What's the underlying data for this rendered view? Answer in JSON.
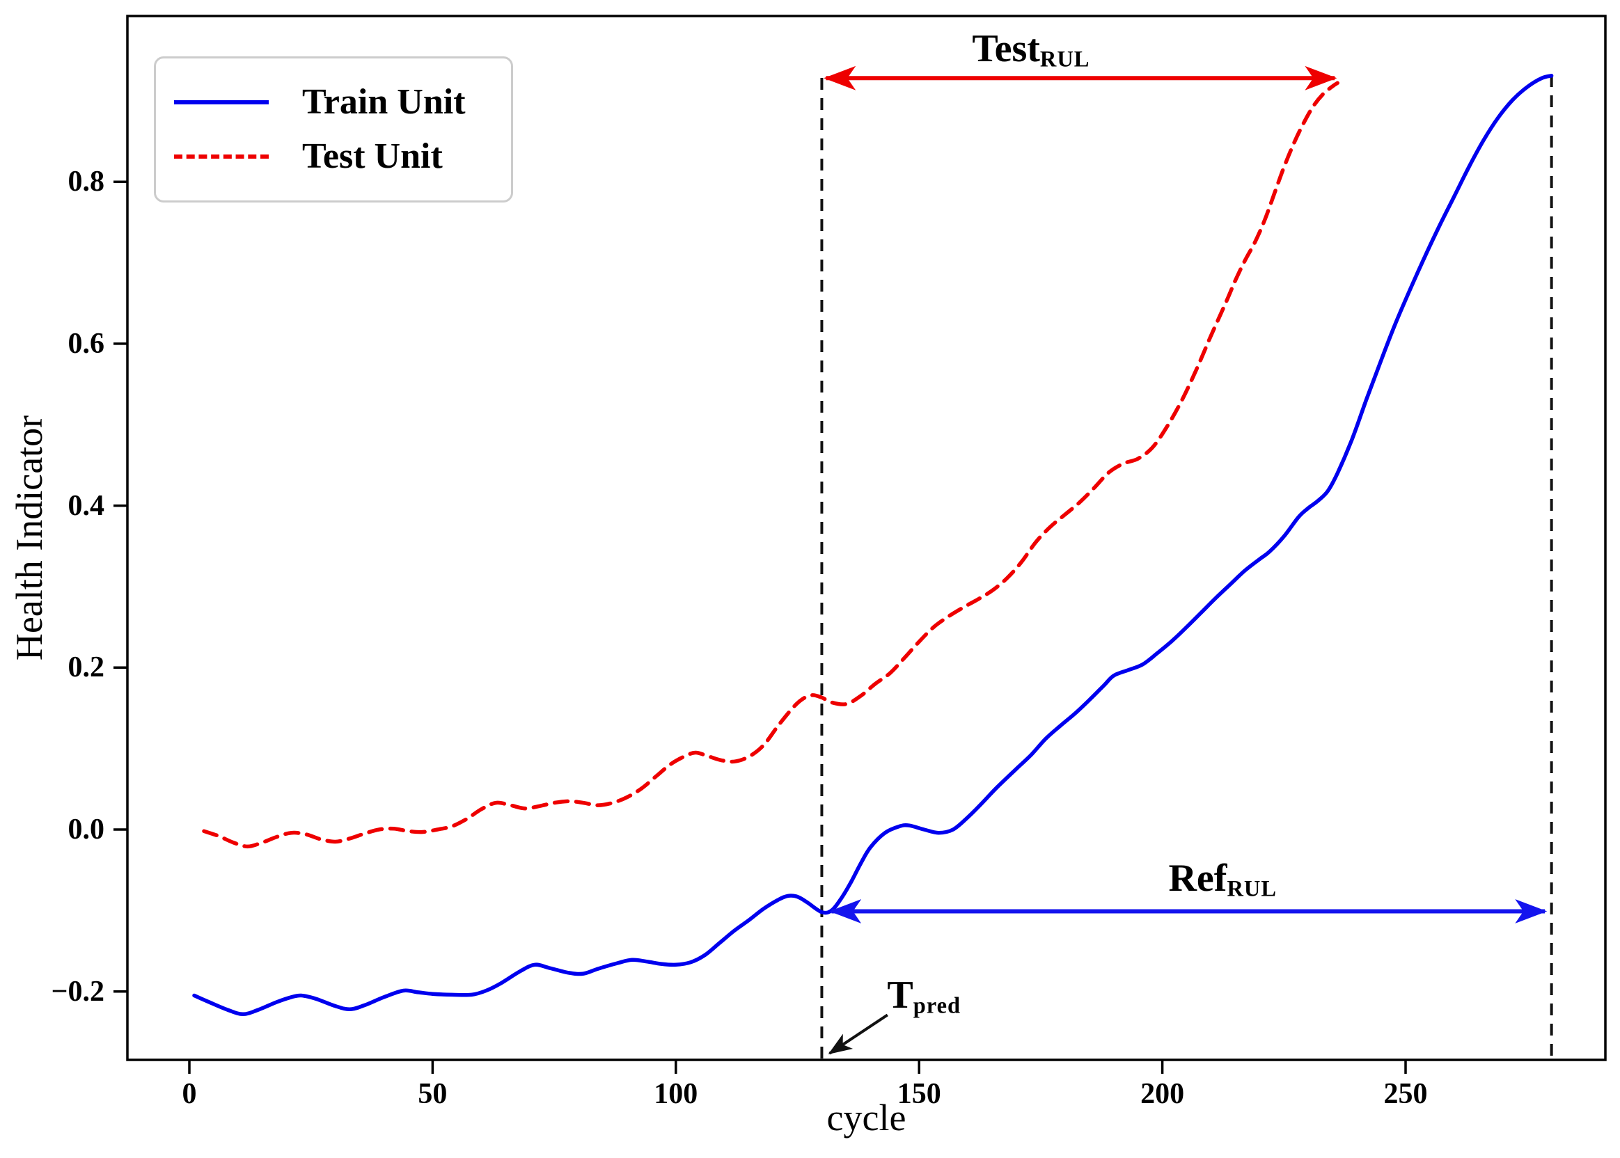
{
  "figure": {
    "background": "#ffffff",
    "axis_color": "#000000",
    "train_color": "#0000ee",
    "test_color": "#ee0000",
    "dashed_guide_color": "#111111"
  },
  "legend": {
    "items": [
      {
        "label": "Train Unit",
        "color": "#0000ee",
        "style": "solid"
      },
      {
        "label": "Test Unit",
        "color": "#ee0000",
        "style": "dashed"
      }
    ]
  },
  "annotations": {
    "test_rul": {
      "text": "Test",
      "sub": "RUL",
      "label_cycle": 173,
      "label_value": 0.963,
      "arrow_from_cycle": 130,
      "arrow_to_cycle": 236,
      "arrow_value": 0.928,
      "arrow_color": "#ee0000"
    },
    "ref_rul": {
      "text": "Ref",
      "sub": "RUL",
      "label_cycle": 212.4,
      "label_value": -0.062,
      "arrow_from_cycle": 132,
      "arrow_to_cycle": 279.2,
      "arrow_value": -0.101,
      "arrow_color": "#1414ee"
    },
    "t_pred": {
      "text": "T",
      "sub": "pred",
      "label_cycle": 151,
      "label_value": -0.206,
      "arrow_tail": [
        143.5,
        -0.229
      ],
      "arrow_tip": [
        131.6,
        -0.2765
      ],
      "arrow_color": "#111111"
    }
  },
  "guides": {
    "t_pred_cycle": 130,
    "ref_end_cycle": 280
  },
  "chart_data": {
    "type": "line",
    "title": "",
    "xlabel": "cycle",
    "ylabel": "Health Indicator",
    "xlim": [
      -12.5,
      291
    ],
    "ylim": [
      -0.285,
      1.005
    ],
    "x_ticks": [
      0,
      50,
      100,
      150,
      200,
      250
    ],
    "x_tick_labels": [
      "0",
      "50",
      "100",
      "150",
      "200",
      "250"
    ],
    "y_ticks": [
      0.8,
      0.6,
      0.4,
      0.2,
      0.0,
      -0.2
    ],
    "y_tick_labels": [
      "0.8",
      "0.6",
      "0.4",
      "0.2",
      "0.0",
      "−0.2"
    ],
    "grid": false,
    "legend_position": "upper left",
    "series": [
      {
        "name": "Train Unit",
        "color": "#0000ee",
        "line_style": "solid",
        "points": [
          [
            1,
            -0.205
          ],
          [
            4,
            -0.213
          ],
          [
            8,
            -0.223
          ],
          [
            11,
            -0.228
          ],
          [
            14,
            -0.223
          ],
          [
            18,
            -0.213
          ],
          [
            21,
            -0.207
          ],
          [
            23,
            -0.205
          ],
          [
            26,
            -0.209
          ],
          [
            30,
            -0.218
          ],
          [
            33,
            -0.222
          ],
          [
            36,
            -0.217
          ],
          [
            40,
            -0.207
          ],
          [
            44,
            -0.199
          ],
          [
            47,
            -0.201
          ],
          [
            50,
            -0.203
          ],
          [
            54,
            -0.204
          ],
          [
            58,
            -0.204
          ],
          [
            61,
            -0.199
          ],
          [
            64,
            -0.19
          ],
          [
            68,
            -0.175
          ],
          [
            71,
            -0.167
          ],
          [
            74,
            -0.171
          ],
          [
            78,
            -0.177
          ],
          [
            81,
            -0.178
          ],
          [
            84,
            -0.172
          ],
          [
            88,
            -0.165
          ],
          [
            91,
            -0.161
          ],
          [
            94,
            -0.163
          ],
          [
            97,
            -0.166
          ],
          [
            100,
            -0.167
          ],
          [
            103,
            -0.164
          ],
          [
            106,
            -0.155
          ],
          [
            109,
            -0.14
          ],
          [
            112,
            -0.125
          ],
          [
            115,
            -0.112
          ],
          [
            118,
            -0.098
          ],
          [
            121,
            -0.087
          ],
          [
            123,
            -0.082
          ],
          [
            125,
            -0.083
          ],
          [
            127,
            -0.09
          ],
          [
            130,
            -0.102
          ],
          [
            132,
            -0.1
          ],
          [
            134,
            -0.085
          ],
          [
            136,
            -0.065
          ],
          [
            138,
            -0.042
          ],
          [
            140,
            -0.022
          ],
          [
            143,
            -0.004
          ],
          [
            146,
            0.004
          ],
          [
            148,
            0.005
          ],
          [
            151,
            0.0
          ],
          [
            154,
            -0.004
          ],
          [
            157,
            0.0
          ],
          [
            160,
            0.015
          ],
          [
            163,
            0.033
          ],
          [
            166,
            0.052
          ],
          [
            170,
            0.075
          ],
          [
            173,
            0.092
          ],
          [
            176,
            0.112
          ],
          [
            179,
            0.128
          ],
          [
            182,
            0.143
          ],
          [
            185,
            0.16
          ],
          [
            188,
            0.178
          ],
          [
            190,
            0.19
          ],
          [
            193,
            0.197
          ],
          [
            196,
            0.204
          ],
          [
            199,
            0.218
          ],
          [
            202,
            0.233
          ],
          [
            205,
            0.25
          ],
          [
            208,
            0.268
          ],
          [
            211,
            0.286
          ],
          [
            214,
            0.303
          ],
          [
            217,
            0.32
          ],
          [
            220,
            0.334
          ],
          [
            222,
            0.343
          ],
          [
            225,
            0.362
          ],
          [
            228,
            0.386
          ],
          [
            230,
            0.397
          ],
          [
            232,
            0.406
          ],
          [
            234,
            0.418
          ],
          [
            236,
            0.44
          ],
          [
            239,
            0.482
          ],
          [
            242,
            0.532
          ],
          [
            245,
            0.58
          ],
          [
            248,
            0.626
          ],
          [
            251,
            0.668
          ],
          [
            254,
            0.708
          ],
          [
            257,
            0.746
          ],
          [
            260,
            0.782
          ],
          [
            263,
            0.818
          ],
          [
            266,
            0.851
          ],
          [
            269,
            0.879
          ],
          [
            272,
            0.901
          ],
          [
            275,
            0.917
          ],
          [
            278,
            0.928
          ],
          [
            280,
            0.931
          ]
        ]
      },
      {
        "name": "Test Unit",
        "color": "#ee0000",
        "line_style": "dashed",
        "points": [
          [
            3,
            -0.002
          ],
          [
            6,
            -0.008
          ],
          [
            9,
            -0.016
          ],
          [
            12,
            -0.021
          ],
          [
            15,
            -0.016
          ],
          [
            18,
            -0.009
          ],
          [
            21,
            -0.004
          ],
          [
            24,
            -0.006
          ],
          [
            27,
            -0.012
          ],
          [
            30,
            -0.015
          ],
          [
            33,
            -0.011
          ],
          [
            36,
            -0.005
          ],
          [
            39,
            0.0
          ],
          [
            42,
            0.001
          ],
          [
            45,
            -0.002
          ],
          [
            48,
            -0.003
          ],
          [
            51,
            0.0
          ],
          [
            54,
            0.004
          ],
          [
            57,
            0.013
          ],
          [
            60,
            0.025
          ],
          [
            63,
            0.033
          ],
          [
            66,
            0.03
          ],
          [
            69,
            0.026
          ],
          [
            72,
            0.029
          ],
          [
            75,
            0.033
          ],
          [
            78,
            0.035
          ],
          [
            81,
            0.033
          ],
          [
            84,
            0.03
          ],
          [
            87,
            0.033
          ],
          [
            90,
            0.04
          ],
          [
            93,
            0.051
          ],
          [
            96,
            0.066
          ],
          [
            99,
            0.081
          ],
          [
            102,
            0.091
          ],
          [
            104,
            0.095
          ],
          [
            106,
            0.092
          ],
          [
            109,
            0.086
          ],
          [
            112,
            0.084
          ],
          [
            115,
            0.09
          ],
          [
            118,
            0.104
          ],
          [
            121,
            0.128
          ],
          [
            124,
            0.15
          ],
          [
            126,
            0.161
          ],
          [
            128,
            0.166
          ],
          [
            130,
            0.163
          ],
          [
            132,
            0.157
          ],
          [
            135,
            0.155
          ],
          [
            138,
            0.165
          ],
          [
            141,
            0.18
          ],
          [
            144,
            0.193
          ],
          [
            147,
            0.212
          ],
          [
            150,
            0.232
          ],
          [
            153,
            0.25
          ],
          [
            156,
            0.263
          ],
          [
            159,
            0.274
          ],
          [
            162,
            0.284
          ],
          [
            165,
            0.295
          ],
          [
            168,
            0.31
          ],
          [
            171,
            0.33
          ],
          [
            174,
            0.355
          ],
          [
            177,
            0.374
          ],
          [
            180,
            0.389
          ],
          [
            183,
            0.404
          ],
          [
            186,
            0.422
          ],
          [
            189,
            0.441
          ],
          [
            192,
            0.452
          ],
          [
            195,
            0.458
          ],
          [
            198,
            0.472
          ],
          [
            201,
            0.498
          ],
          [
            204,
            0.53
          ],
          [
            207,
            0.568
          ],
          [
            210,
            0.61
          ],
          [
            213,
            0.65
          ],
          [
            215,
            0.678
          ],
          [
            217,
            0.703
          ],
          [
            219,
            0.725
          ],
          [
            221,
            0.752
          ],
          [
            223,
            0.785
          ],
          [
            225,
            0.818
          ],
          [
            227,
            0.847
          ],
          [
            229,
            0.872
          ],
          [
            231,
            0.893
          ],
          [
            233,
            0.908
          ],
          [
            235,
            0.918
          ],
          [
            236,
            0.922
          ]
        ]
      }
    ]
  }
}
